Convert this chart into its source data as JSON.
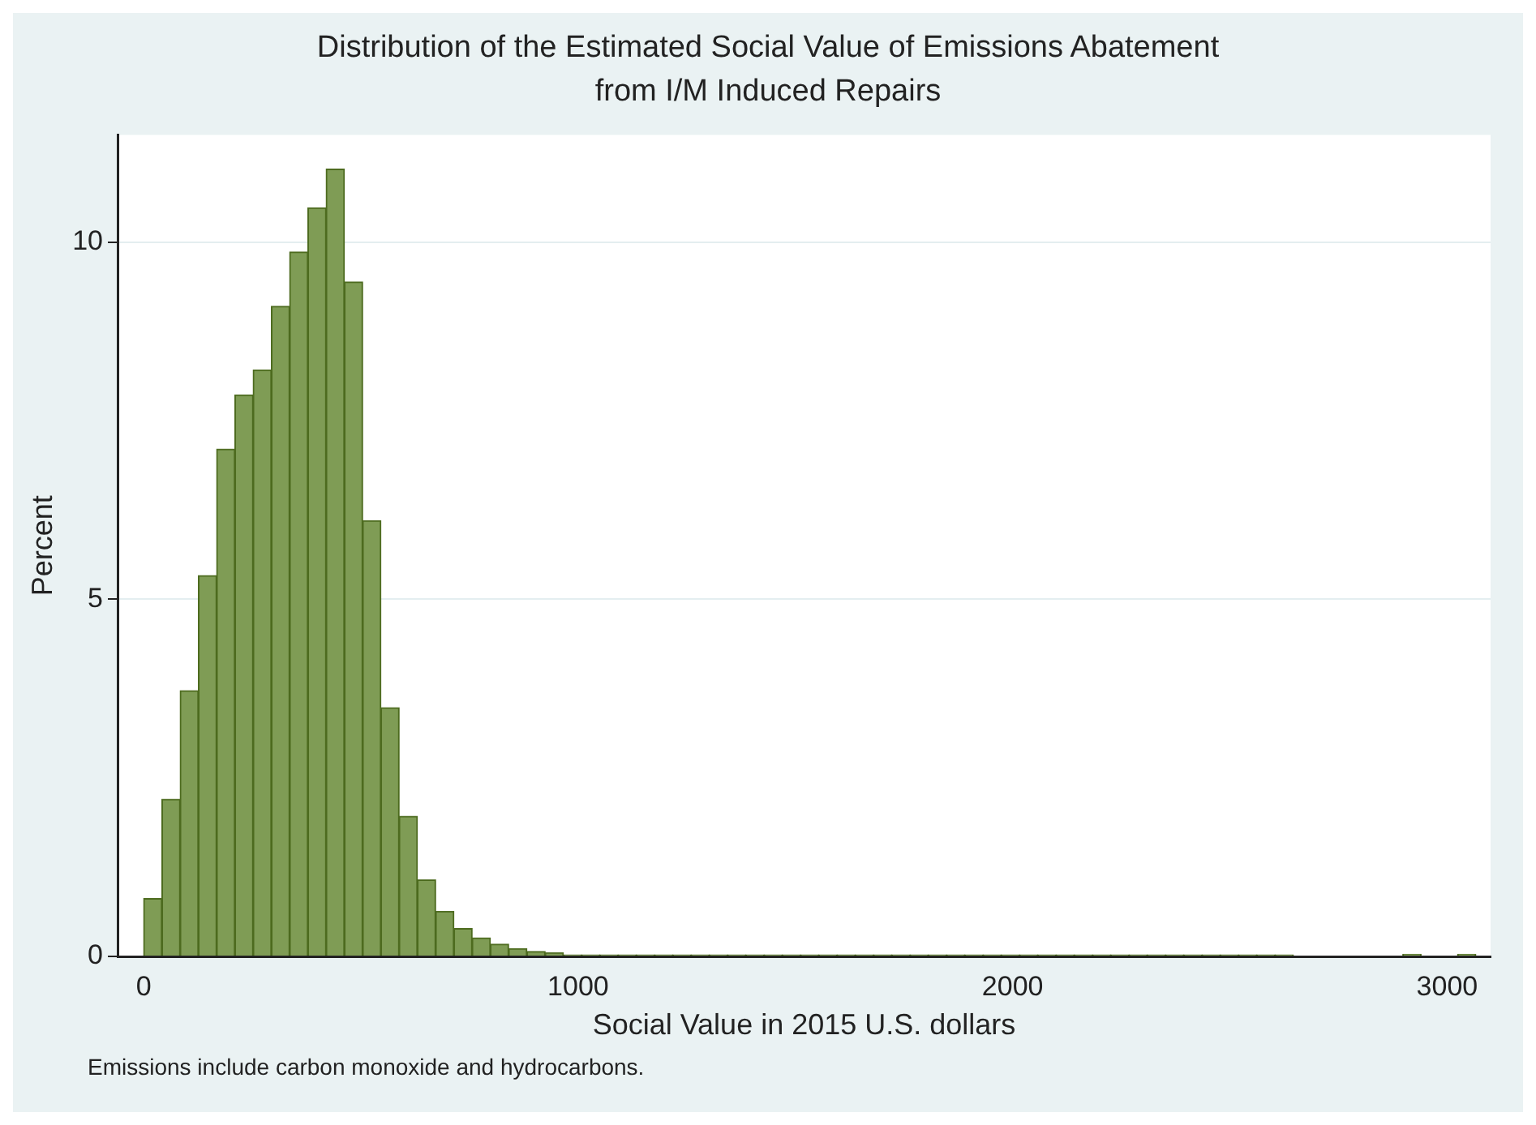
{
  "chart_data": {
    "type": "histogram",
    "title": "Distribution of the Estimated Social Value of Emissions Abatement from I/M Induced Repairs",
    "xlabel": "Social Value in 2015 U.S. dollars",
    "ylabel": "Percent",
    "annotations": [
      "Emissions include carbon monoxide and hydrocarbons."
    ],
    "bins": [
      0,
      42,
      84,
      126,
      168,
      210,
      252,
      294,
      336,
      378,
      420,
      462,
      504,
      546,
      588,
      630,
      672,
      714,
      756,
      798,
      840,
      882,
      924,
      966,
      1008,
      1050,
      1092,
      1134,
      1176,
      1218,
      1260,
      1302,
      1344,
      1386,
      1428,
      1470,
      1512,
      1554,
      1596,
      1638,
      1680,
      1722,
      1764,
      1806,
      1848,
      1890,
      1932,
      1974,
      2016,
      2058,
      2100,
      2142,
      2184,
      2226,
      2268,
      2310,
      2352,
      2394,
      2436,
      2478,
      2520,
      2562,
      2604,
      2646,
      2688,
      2730,
      2772,
      2814,
      2856,
      2898,
      2940,
      2982,
      3024,
      3066
    ],
    "values": [
      0.81,
      2.2,
      3.72,
      5.33,
      7.1,
      7.86,
      8.21,
      9.1,
      9.86,
      10.48,
      11.02,
      9.44,
      6.1,
      3.48,
      1.96,
      1.07,
      0.63,
      0.39,
      0.26,
      0.17,
      0.11,
      0.07,
      0.05,
      0.02,
      0.02,
      0.02,
      0.02,
      0.02,
      0.02,
      0.02,
      0.02,
      0.02,
      0.02,
      0.02,
      0.02,
      0.02,
      0.02,
      0.02,
      0.02,
      0.02,
      0.02,
      0.02,
      0.02,
      0.02,
      0.02,
      0.02,
      0.02,
      0.02,
      0.02,
      0.02,
      0.02,
      0.02,
      0.02,
      0.02,
      0.02,
      0.02,
      0.02,
      0.02,
      0.02,
      0.02,
      0.02,
      0.02,
      0.02,
      0,
      0,
      0,
      0,
      0,
      0,
      0.03,
      0,
      0,
      0.03
    ],
    "color": "#7f9c55",
    "xlim": [
      -60,
      3100
    ],
    "xticks": [
      0,
      1000,
      2000,
      3000
    ],
    "ylim": [
      0,
      11.5
    ],
    "yticks": [
      0,
      5,
      10
    ],
    "grid": "y"
  }
}
